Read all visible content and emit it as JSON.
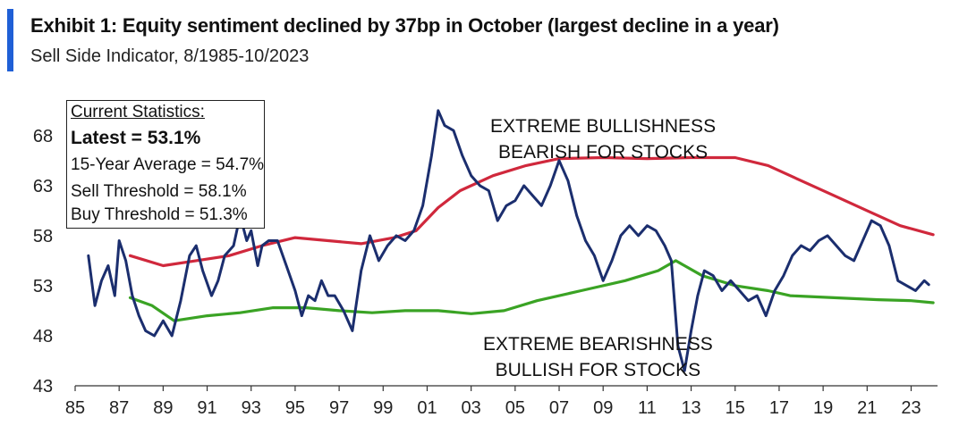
{
  "header": {
    "title": "Exhibit 1: Equity sentiment declined by 37bp in October (largest decline in a year)",
    "subtitle": "Sell Side Indicator, 8/1985-10/2023"
  },
  "stats": {
    "heading": "Current Statistics:",
    "latest": "Latest = 53.1%",
    "average": "15-Year Average = 54.7%",
    "sell": "Sell Threshold = 58.1%",
    "buy": "Buy Threshold = 51.3%"
  },
  "annotations": {
    "bull_line1": "EXTREME BULLISHNESS",
    "bull_line2": "BEARISH FOR STOCKS",
    "bear_line1": "EXTREME BEARISHNESS",
    "bear_line2": "BULLISH FOR STOCKS"
  },
  "colors": {
    "indicator": "#1b2e6e",
    "sell_threshold": "#d0283c",
    "buy_threshold": "#3aa324",
    "accent": "#1f5fd6",
    "axis": "#333333"
  },
  "chart_data": {
    "type": "line",
    "title": "Sell Side Indicator",
    "xlabel": "",
    "ylabel": "",
    "xlim": [
      1985,
      2024.2
    ],
    "ylim": [
      43,
      72
    ],
    "x_ticks": [
      "85",
      "87",
      "89",
      "91",
      "93",
      "95",
      "97",
      "99",
      "01",
      "03",
      "05",
      "07",
      "09",
      "11",
      "13",
      "15",
      "17",
      "19",
      "21",
      "23"
    ],
    "y_ticks": [
      43,
      48,
      53,
      58,
      63,
      68
    ],
    "series": [
      {
        "name": "Sell Side Indicator",
        "color": "#1b2e6e",
        "x": [
          1985.6,
          1985.9,
          1986.2,
          1986.5,
          1986.8,
          1987.0,
          1987.3,
          1987.6,
          1987.9,
          1988.2,
          1988.6,
          1989.0,
          1989.4,
          1989.8,
          1990.2,
          1990.5,
          1990.8,
          1991.2,
          1991.5,
          1991.8,
          1992.2,
          1992.5,
          1992.8,
          1993.0,
          1993.3,
          1993.5,
          1993.8,
          1994.2,
          1994.6,
          1995.0,
          1995.3,
          1995.6,
          1995.9,
          1996.2,
          1996.5,
          1996.8,
          1997.2,
          1997.6,
          1998.0,
          1998.4,
          1998.8,
          1999.2,
          1999.6,
          2000.0,
          2000.4,
          2000.8,
          2001.2,
          2001.5,
          2001.8,
          2002.2,
          2002.6,
          2003.0,
          2003.4,
          2003.8,
          2004.2,
          2004.6,
          2005.0,
          2005.4,
          2005.8,
          2006.2,
          2006.6,
          2007.0,
          2007.4,
          2007.8,
          2008.2,
          2008.6,
          2009.0,
          2009.4,
          2009.8,
          2010.2,
          2010.6,
          2011.0,
          2011.4,
          2011.8,
          2012.1,
          2012.4,
          2012.7,
          2013.0,
          2013.3,
          2013.6,
          2014.0,
          2014.4,
          2014.8,
          2015.2,
          2015.6,
          2016.0,
          2016.4,
          2016.8,
          2017.2,
          2017.6,
          2018.0,
          2018.4,
          2018.8,
          2019.2,
          2019.6,
          2020.0,
          2020.4,
          2020.8,
          2021.2,
          2021.6,
          2022.0,
          2022.4,
          2022.8,
          2023.2,
          2023.6,
          2023.8
        ],
        "values": [
          56.0,
          51.0,
          53.5,
          55.0,
          52.0,
          57.5,
          55.5,
          52.0,
          50.0,
          48.5,
          48.0,
          49.5,
          48.0,
          51.5,
          56.0,
          57.0,
          54.5,
          52.0,
          53.5,
          56.0,
          57.0,
          60.0,
          57.5,
          58.5,
          55.0,
          57.0,
          57.5,
          57.5,
          55.0,
          52.5,
          50.0,
          52.0,
          51.5,
          53.5,
          52.0,
          52.0,
          50.5,
          48.5,
          54.5,
          58.0,
          55.5,
          57.0,
          58.0,
          57.5,
          58.5,
          61.0,
          66.0,
          70.5,
          69.0,
          68.5,
          66.0,
          64.0,
          63.0,
          62.5,
          59.5,
          61.0,
          61.5,
          63.0,
          62.0,
          61.0,
          63.0,
          65.5,
          63.5,
          60.0,
          57.5,
          56.0,
          53.5,
          55.5,
          58.0,
          59.0,
          58.0,
          59.0,
          58.5,
          57.0,
          55.5,
          47.0,
          44.5,
          48.5,
          52.0,
          54.5,
          54.0,
          52.5,
          53.5,
          52.5,
          51.5,
          52.0,
          50.0,
          52.5,
          54.0,
          56.0,
          57.0,
          56.5,
          57.5,
          58.0,
          57.0,
          56.0,
          55.5,
          57.5,
          59.5,
          59.0,
          57.0,
          53.5,
          53.0,
          52.5,
          53.5,
          53.1
        ]
      },
      {
        "name": "Sell Threshold",
        "color": "#d0283c",
        "x": [
          1987.5,
          1989.0,
          1990.5,
          1992.0,
          1993.5,
          1995.0,
          1996.5,
          1998.0,
          1999.5,
          2000.5,
          2001.5,
          2002.5,
          2004.0,
          2005.5,
          2007.0,
          2009.0,
          2011.0,
          2013.0,
          2015.0,
          2016.5,
          2018.0,
          2019.5,
          2021.0,
          2022.5,
          2024.0
        ],
        "values": [
          56.0,
          55.0,
          55.5,
          56.0,
          57.0,
          57.8,
          57.5,
          57.2,
          57.8,
          58.5,
          60.8,
          62.5,
          64.0,
          65.0,
          65.7,
          65.8,
          65.7,
          65.8,
          65.8,
          65.0,
          63.5,
          62.0,
          60.5,
          59.0,
          58.1
        ]
      },
      {
        "name": "Buy Threshold",
        "color": "#3aa324",
        "x": [
          1987.5,
          1988.5,
          1989.5,
          1991.0,
          1992.5,
          1994.0,
          1995.5,
          1997.0,
          1998.5,
          2000.0,
          2001.5,
          2003.0,
          2004.5,
          2006.0,
          2008.0,
          2010.0,
          2011.5,
          2012.3,
          2013.5,
          2015.0,
          2016.5,
          2017.5,
          2019.5,
          2021.5,
          2023.0,
          2024.0
        ],
        "values": [
          51.8,
          51.0,
          49.5,
          50.0,
          50.3,
          50.8,
          50.8,
          50.5,
          50.3,
          50.5,
          50.5,
          50.2,
          50.5,
          51.5,
          52.5,
          53.5,
          54.5,
          55.5,
          54.0,
          53.0,
          52.5,
          52.0,
          51.8,
          51.6,
          51.5,
          51.3
        ]
      }
    ]
  }
}
